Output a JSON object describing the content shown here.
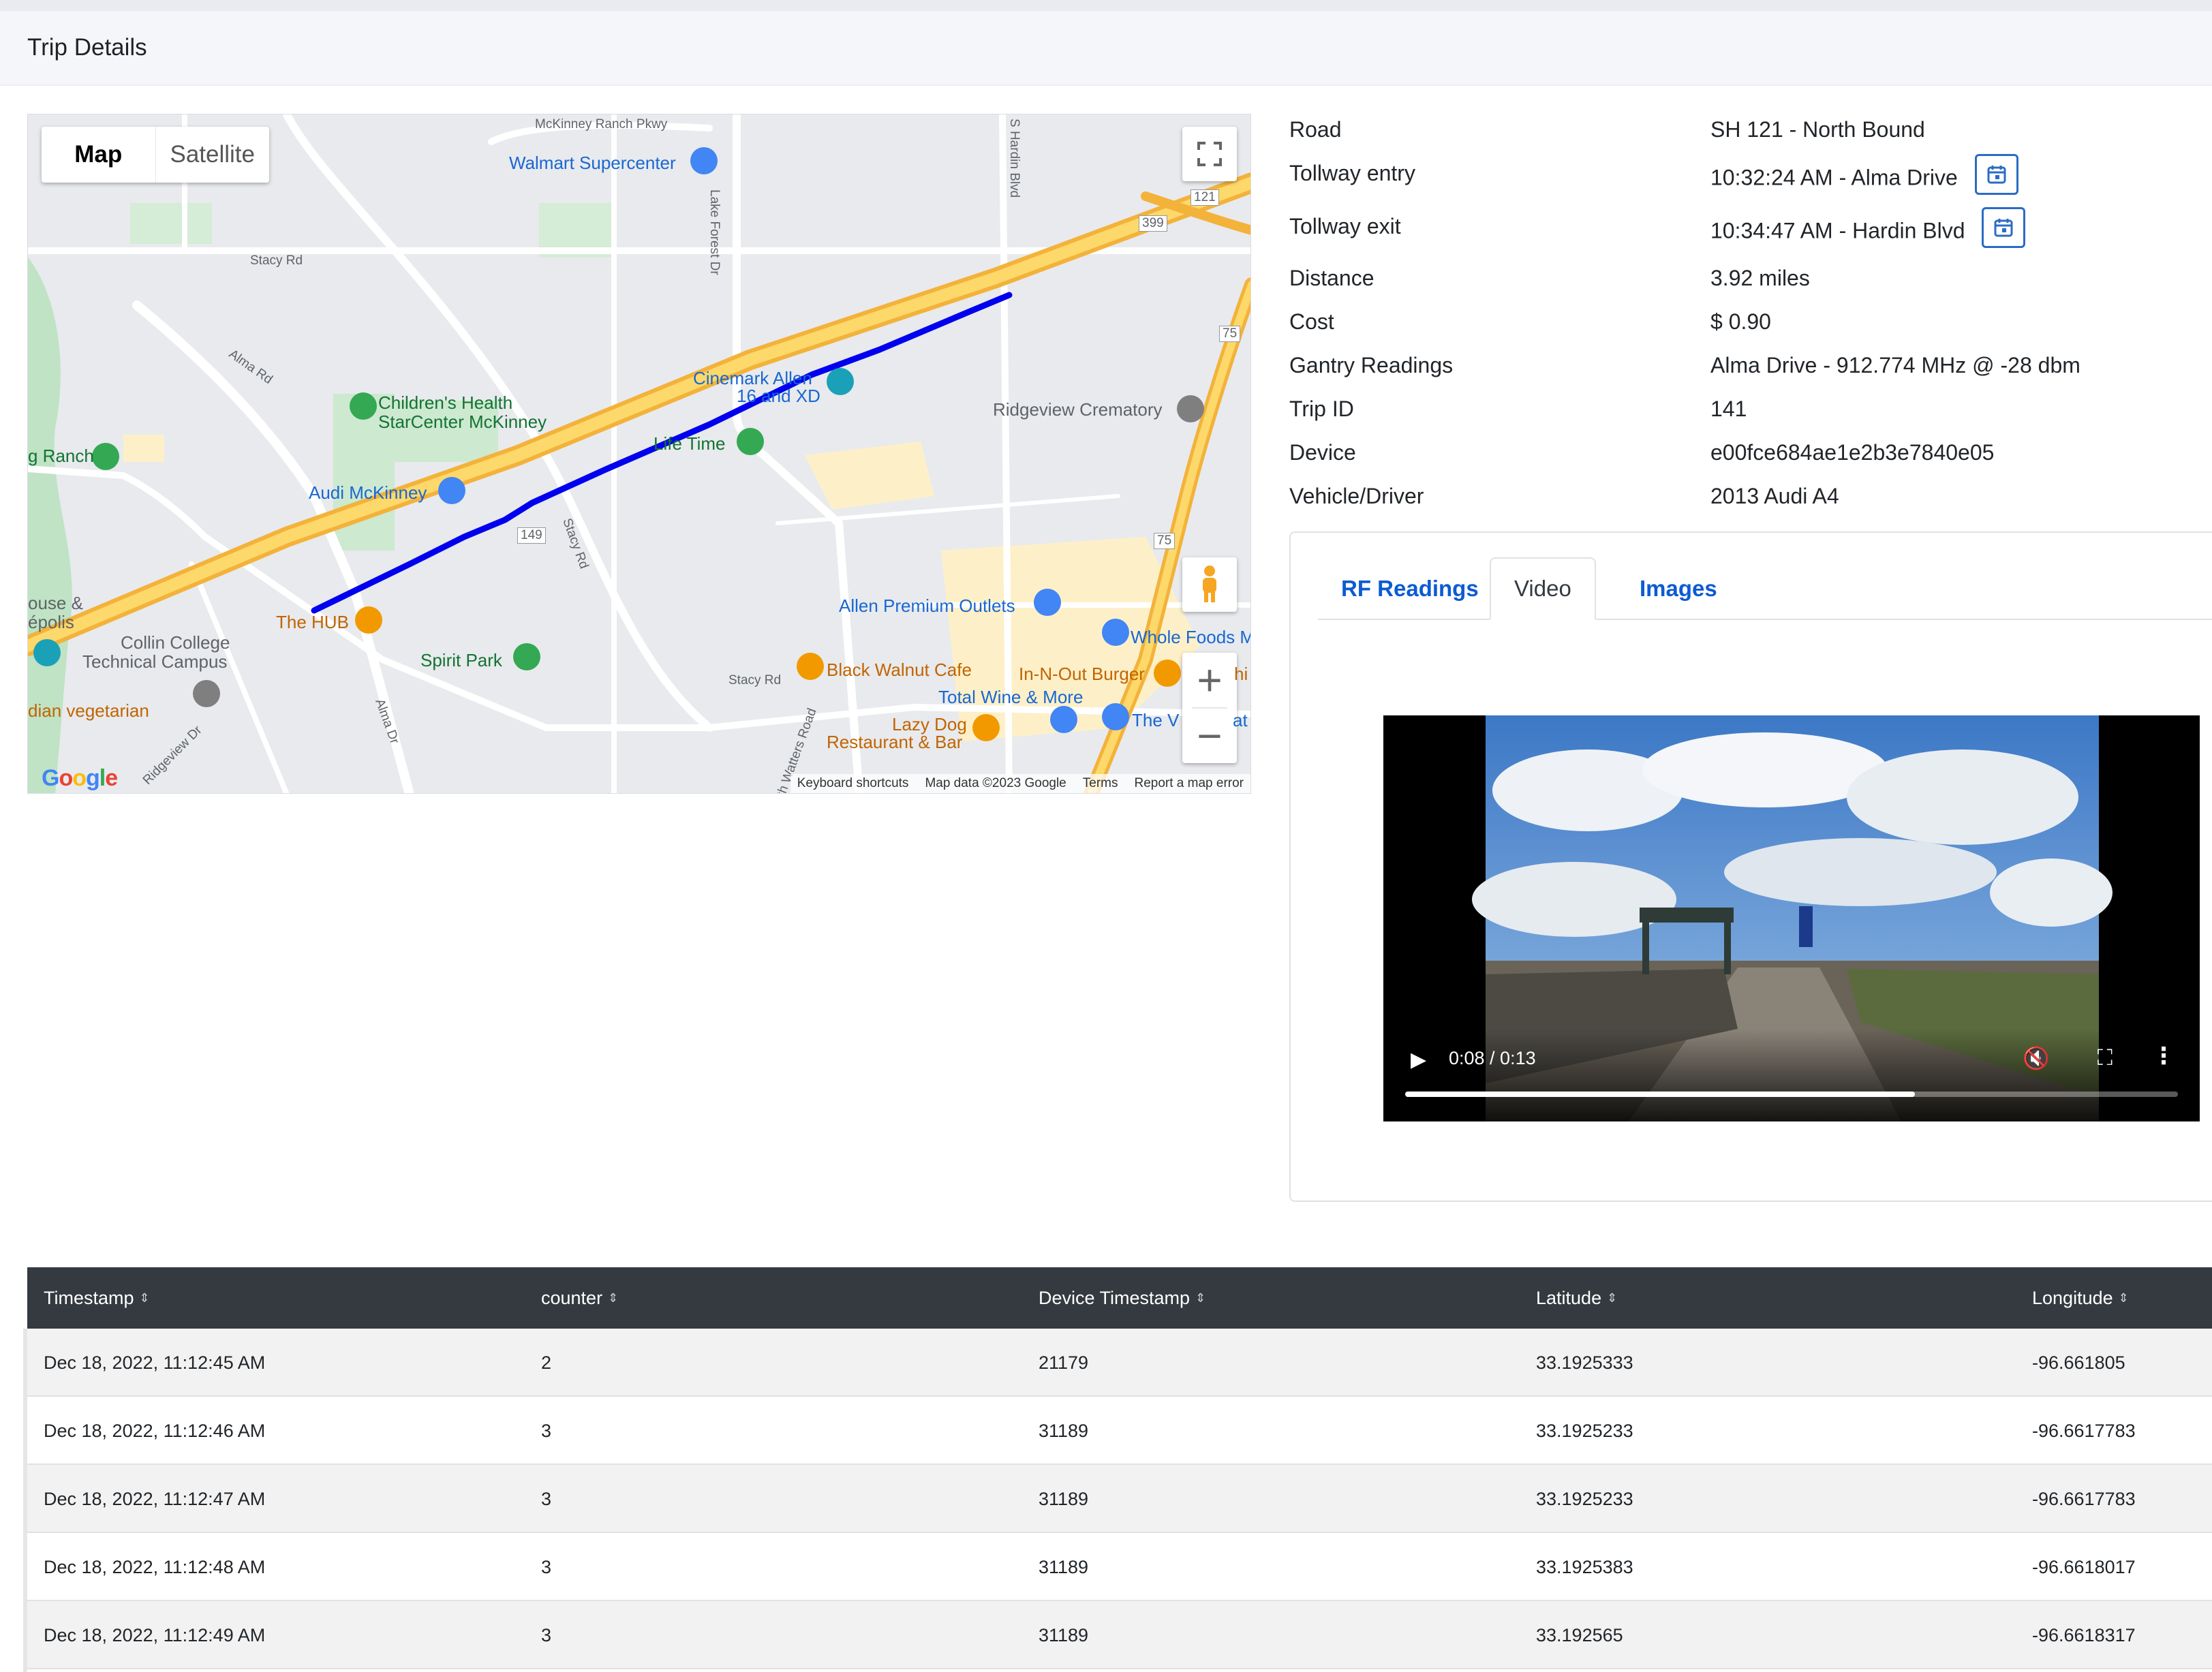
{
  "header": {
    "title": "Trip Details"
  },
  "map": {
    "type_buttons": [
      "Map",
      "Satellite"
    ],
    "labels": {
      "walmart": "Walmart Supercenter",
      "childrens": "Children's Health",
      "childrens2": "StarCenter McKinney",
      "audi": "Audi McKinney",
      "ranch": "g Ranch",
      "cinemark": "Cinemark Allen",
      "cinemark2": "16 and XD",
      "lifetime": "Life Time",
      "ridgeview": "Ridgeview Crematory",
      "thehub": "The HUB",
      "spiritpark": "Spirit Park",
      "collin": "Collin College",
      "collin2": "Technical Campus",
      "house": "ouse &",
      "house2": "épolis",
      "vegetarian": "dian vegetarian",
      "allen_outlets": "Allen Premium Outlets",
      "whole_foods": "Whole Foods M",
      "black_walnut": "Black Walnut Cafe",
      "total_wine": "Total Wine & More",
      "innout": "In-N-Out Burger",
      "lazydog": "Lazy Dog",
      "lazydog2": "Restaurant & Bar",
      "thev": "The V",
      "hi": "hi",
      "at": "at"
    },
    "roads": {
      "mckinney_ranch": "McKinney Ranch Pkwy",
      "lake_forest": "Lake Forest Dr",
      "hardin": "S Hardin Blvd",
      "stacy1": "Stacy Rd",
      "alma1": "Alma Rd",
      "stacy2": "Stacy Rd",
      "stacy3": "Stacy Rd",
      "alma2": "Alma Dr",
      "ridgeview_dr": "Ridgeview Dr",
      "north_watters": "North Watters Road",
      "r399": "399",
      "r121": "121",
      "r75a": "75",
      "r149": "149",
      "r75b": "75"
    },
    "google": "Google",
    "attribution": [
      "Keyboard shortcuts",
      "Map data ©2023 Google",
      "Terms",
      "Report a map error"
    ]
  },
  "details": [
    {
      "key": "Road",
      "value": "SH 121 - North Bound"
    },
    {
      "key": "Tollway entry",
      "value": "10:32:24 AM - Alma Drive"
    },
    {
      "key": "Tollway exit",
      "value": "10:34:47 AM - Hardin Blvd"
    },
    {
      "key": "Distance",
      "value": "3.92 miles"
    },
    {
      "key": "Cost",
      "value": "$ 0.90"
    },
    {
      "key": "Gantry Readings",
      "value": "Alma Drive - 912.774 MHz @ -28 dbm"
    },
    {
      "key": "Trip ID",
      "value": "141"
    },
    {
      "key": "Device",
      "value": "e00fce684ae1e2b3e7840e05"
    },
    {
      "key": "Vehicle/Driver",
      "value": "2013 Audi A4"
    }
  ],
  "tabs": [
    "RF Readings",
    "Video",
    "Images"
  ],
  "video": {
    "time": "0:08 / 0:13",
    "progress": 0.66
  },
  "table": {
    "headers": [
      "Timestamp",
      "counter",
      "Device Timestamp",
      "Latitude",
      "Longitude"
    ],
    "rows": [
      [
        "Dec 18, 2022, 11:12:45 AM",
        "2",
        "21179",
        "33.1925333",
        "-96.661805"
      ],
      [
        "Dec 18, 2022, 11:12:46 AM",
        "3",
        "31189",
        "33.1925233",
        "-96.6617783"
      ],
      [
        "Dec 18, 2022, 11:12:47 AM",
        "3",
        "31189",
        "33.1925233",
        "-96.6617783"
      ],
      [
        "Dec 18, 2022, 11:12:48 AM",
        "3",
        "31189",
        "33.1925383",
        "-96.6618017"
      ],
      [
        "Dec 18, 2022, 11:12:49 AM",
        "3",
        "31189",
        "33.192565",
        "-96.6618317"
      ]
    ]
  },
  "colors": {
    "accent": "#0d5bd3",
    "route": "#0000ee",
    "table_header": "#343a40",
    "highway": "#f6b733"
  }
}
